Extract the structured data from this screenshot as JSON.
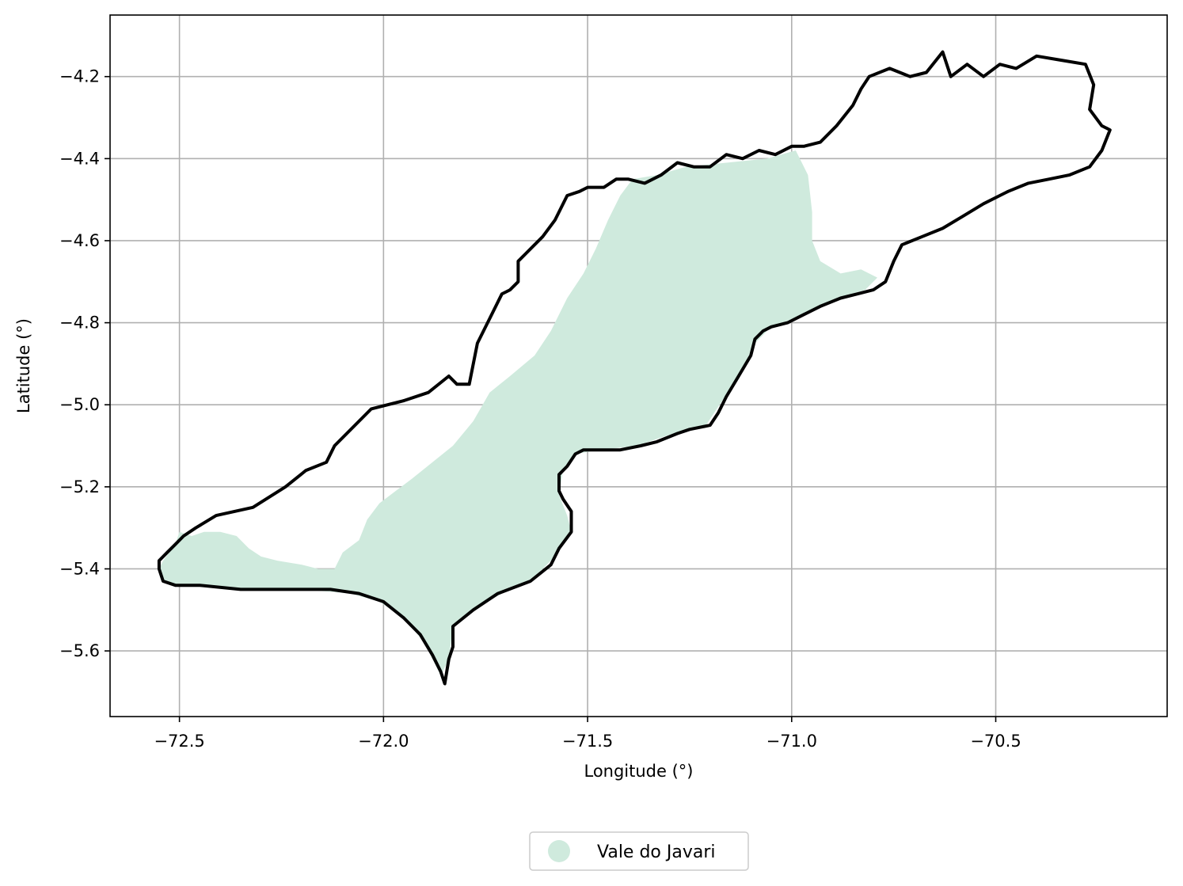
{
  "chart_data": {
    "type": "map",
    "xlabel": "Longitude (°)",
    "ylabel": "Latitude (°)",
    "xlim": [
      -72.67,
      -70.08
    ],
    "ylim": [
      -5.76,
      -4.05
    ],
    "xticks": [
      {
        "value": -72.5,
        "label": "−72.5"
      },
      {
        "value": -72.0,
        "label": "−72.0"
      },
      {
        "value": -71.5,
        "label": "−71.5"
      },
      {
        "value": -71.0,
        "label": "−71.0"
      },
      {
        "value": -70.5,
        "label": "−70.5"
      }
    ],
    "yticks": [
      {
        "value": -4.2,
        "label": "−4.2"
      },
      {
        "value": -4.4,
        "label": "−4.4"
      },
      {
        "value": -4.6,
        "label": "−4.6"
      },
      {
        "value": -4.8,
        "label": "−4.8"
      },
      {
        "value": -5.0,
        "label": "−5.0"
      },
      {
        "value": -5.2,
        "label": "−5.2"
      },
      {
        "value": -5.4,
        "label": "−5.4"
      },
      {
        "value": -5.6,
        "label": "−5.6"
      }
    ],
    "grid": true,
    "legend": {
      "placement": "below-center",
      "entries": [
        {
          "label": "Vale do Javari",
          "color": "#cfeadd"
        }
      ]
    },
    "fill_color": "#cfeadd",
    "outline_color": "#000000",
    "layers": {
      "outline": [
        [
          -72.55,
          -5.38
        ],
        [
          -72.53,
          -5.36
        ],
        [
          -72.51,
          -5.34
        ],
        [
          -72.49,
          -5.32
        ],
        [
          -72.46,
          -5.3
        ],
        [
          -72.41,
          -5.27
        ],
        [
          -72.32,
          -5.25
        ],
        [
          -72.24,
          -5.2
        ],
        [
          -72.19,
          -5.16
        ],
        [
          -72.14,
          -5.14
        ],
        [
          -72.12,
          -5.1
        ],
        [
          -72.03,
          -5.01
        ],
        [
          -71.95,
          -4.99
        ],
        [
          -71.89,
          -4.97
        ],
        [
          -71.84,
          -4.93
        ],
        [
          -71.82,
          -4.95
        ],
        [
          -71.79,
          -4.95
        ],
        [
          -71.77,
          -4.85
        ],
        [
          -71.74,
          -4.79
        ],
        [
          -71.71,
          -4.73
        ],
        [
          -71.69,
          -4.72
        ],
        [
          -71.67,
          -4.7
        ],
        [
          -71.67,
          -4.65
        ],
        [
          -71.65,
          -4.63
        ],
        [
          -71.61,
          -4.59
        ],
        [
          -71.58,
          -4.55
        ],
        [
          -71.55,
          -4.49
        ],
        [
          -71.52,
          -4.48
        ],
        [
          -71.5,
          -4.47
        ],
        [
          -71.46,
          -4.47
        ],
        [
          -71.43,
          -4.45
        ],
        [
          -71.4,
          -4.45
        ],
        [
          -71.36,
          -4.46
        ],
        [
          -71.32,
          -4.44
        ],
        [
          -71.28,
          -4.41
        ],
        [
          -71.24,
          -4.42
        ],
        [
          -71.2,
          -4.42
        ],
        [
          -71.16,
          -4.39
        ],
        [
          -71.12,
          -4.4
        ],
        [
          -71.08,
          -4.38
        ],
        [
          -71.04,
          -4.39
        ],
        [
          -71.0,
          -4.37
        ],
        [
          -70.97,
          -4.37
        ],
        [
          -70.93,
          -4.36
        ],
        [
          -70.89,
          -4.32
        ],
        [
          -70.85,
          -4.27
        ],
        [
          -70.83,
          -4.23
        ],
        [
          -70.81,
          -4.2
        ],
        [
          -70.76,
          -4.18
        ],
        [
          -70.71,
          -4.2
        ],
        [
          -70.67,
          -4.19
        ],
        [
          -70.63,
          -4.14
        ],
        [
          -70.61,
          -4.2
        ],
        [
          -70.57,
          -4.17
        ],
        [
          -70.53,
          -4.2
        ],
        [
          -70.49,
          -4.17
        ],
        [
          -70.45,
          -4.18
        ],
        [
          -70.4,
          -4.15
        ],
        [
          -70.34,
          -4.16
        ],
        [
          -70.28,
          -4.17
        ],
        [
          -70.26,
          -4.22
        ],
        [
          -70.27,
          -4.28
        ],
        [
          -70.24,
          -4.32
        ],
        [
          -70.22,
          -4.33
        ],
        [
          -70.24,
          -4.38
        ],
        [
          -70.27,
          -4.42
        ],
        [
          -70.32,
          -4.44
        ],
        [
          -70.37,
          -4.45
        ],
        [
          -70.42,
          -4.46
        ],
        [
          -70.47,
          -4.48
        ],
        [
          -70.53,
          -4.51
        ],
        [
          -70.58,
          -4.54
        ],
        [
          -70.63,
          -4.57
        ],
        [
          -70.68,
          -4.59
        ],
        [
          -70.73,
          -4.61
        ],
        [
          -70.75,
          -4.65
        ],
        [
          -70.77,
          -4.7
        ],
        [
          -70.8,
          -4.72
        ],
        [
          -70.84,
          -4.73
        ],
        [
          -70.88,
          -4.74
        ],
        [
          -70.93,
          -4.76
        ],
        [
          -70.97,
          -4.78
        ],
        [
          -71.01,
          -4.8
        ],
        [
          -71.05,
          -4.81
        ],
        [
          -71.07,
          -4.82
        ],
        [
          -71.09,
          -4.84
        ],
        [
          -71.1,
          -4.88
        ],
        [
          -71.13,
          -4.93
        ],
        [
          -71.16,
          -4.98
        ],
        [
          -71.18,
          -5.02
        ],
        [
          -71.2,
          -5.05
        ],
        [
          -71.25,
          -5.06
        ],
        [
          -71.28,
          -5.07
        ],
        [
          -71.33,
          -5.09
        ],
        [
          -71.37,
          -5.1
        ],
        [
          -71.42,
          -5.11
        ],
        [
          -71.47,
          -5.11
        ],
        [
          -71.51,
          -5.11
        ],
        [
          -71.53,
          -5.12
        ],
        [
          -71.55,
          -5.15
        ],
        [
          -71.57,
          -5.17
        ],
        [
          -71.57,
          -5.21
        ],
        [
          -71.56,
          -5.23
        ],
        [
          -71.54,
          -5.26
        ],
        [
          -71.54,
          -5.31
        ],
        [
          -71.57,
          -5.35
        ],
        [
          -71.59,
          -5.39
        ],
        [
          -71.64,
          -5.43
        ],
        [
          -71.72,
          -5.46
        ],
        [
          -71.78,
          -5.5
        ],
        [
          -71.83,
          -5.54
        ],
        [
          -71.83,
          -5.59
        ],
        [
          -71.84,
          -5.62
        ],
        [
          -71.85,
          -5.68
        ],
        [
          -71.86,
          -5.65
        ],
        [
          -71.88,
          -5.61
        ],
        [
          -71.91,
          -5.56
        ],
        [
          -71.95,
          -5.52
        ],
        [
          -72.0,
          -5.48
        ],
        [
          -72.06,
          -5.46
        ],
        [
          -72.13,
          -5.45
        ],
        [
          -72.25,
          -5.45
        ],
        [
          -72.35,
          -5.45
        ],
        [
          -72.45,
          -5.44
        ],
        [
          -72.51,
          -5.44
        ],
        [
          -72.54,
          -5.43
        ],
        [
          -72.55,
          -5.4
        ],
        [
          -72.55,
          -5.38
        ]
      ],
      "fill": [
        [
          -72.54,
          -5.38
        ],
        [
          -72.51,
          -5.34
        ],
        [
          -72.5,
          -5.31
        ],
        [
          -72.47,
          -5.32
        ],
        [
          -72.44,
          -5.31
        ],
        [
          -72.4,
          -5.31
        ],
        [
          -72.36,
          -5.32
        ],
        [
          -72.33,
          -5.35
        ],
        [
          -72.3,
          -5.37
        ],
        [
          -72.26,
          -5.38
        ],
        [
          -72.2,
          -5.39
        ],
        [
          -72.16,
          -5.4
        ],
        [
          -72.12,
          -5.4
        ],
        [
          -72.1,
          -5.36
        ],
        [
          -72.06,
          -5.33
        ],
        [
          -72.04,
          -5.28
        ],
        [
          -72.01,
          -5.24
        ],
        [
          -71.97,
          -5.21
        ],
        [
          -71.93,
          -5.18
        ],
        [
          -71.88,
          -5.14
        ],
        [
          -71.83,
          -5.1
        ],
        [
          -71.78,
          -5.04
        ],
        [
          -71.74,
          -4.97
        ],
        [
          -71.69,
          -4.93
        ],
        [
          -71.63,
          -4.88
        ],
        [
          -71.59,
          -4.82
        ],
        [
          -71.55,
          -4.74
        ],
        [
          -71.51,
          -4.68
        ],
        [
          -71.48,
          -4.62
        ],
        [
          -71.45,
          -4.55
        ],
        [
          -71.42,
          -4.49
        ],
        [
          -71.39,
          -4.45
        ],
        [
          -71.33,
          -4.44
        ],
        [
          -71.26,
          -4.42
        ],
        [
          -71.16,
          -4.41
        ],
        [
          -71.06,
          -4.4
        ],
        [
          -70.99,
          -4.38
        ],
        [
          -70.96,
          -4.44
        ],
        [
          -70.95,
          -4.53
        ],
        [
          -70.95,
          -4.6
        ],
        [
          -70.93,
          -4.65
        ],
        [
          -70.88,
          -4.68
        ],
        [
          -70.83,
          -4.67
        ],
        [
          -70.79,
          -4.69
        ],
        [
          -70.82,
          -4.72
        ],
        [
          -70.89,
          -4.74
        ],
        [
          -70.97,
          -4.78
        ],
        [
          -71.05,
          -4.81
        ],
        [
          -71.09,
          -4.85
        ],
        [
          -71.12,
          -4.91
        ],
        [
          -71.17,
          -4.99
        ],
        [
          -71.21,
          -5.05
        ],
        [
          -71.29,
          -5.07
        ],
        [
          -71.38,
          -5.1
        ],
        [
          -71.47,
          -5.11
        ],
        [
          -71.53,
          -5.12
        ],
        [
          -71.56,
          -5.16
        ],
        [
          -71.57,
          -5.22
        ],
        [
          -71.55,
          -5.27
        ],
        [
          -71.54,
          -5.31
        ],
        [
          -71.58,
          -5.37
        ],
        [
          -71.63,
          -5.42
        ],
        [
          -71.71,
          -5.46
        ],
        [
          -71.78,
          -5.5
        ],
        [
          -71.83,
          -5.54
        ],
        [
          -71.84,
          -5.62
        ],
        [
          -71.86,
          -5.66
        ],
        [
          -71.9,
          -5.58
        ],
        [
          -71.95,
          -5.52
        ],
        [
          -72.01,
          -5.48
        ],
        [
          -72.08,
          -5.46
        ],
        [
          -72.2,
          -5.45
        ],
        [
          -72.35,
          -5.45
        ],
        [
          -72.5,
          -5.44
        ],
        [
          -72.54,
          -5.43
        ],
        [
          -72.55,
          -5.4
        ],
        [
          -72.54,
          -5.38
        ]
      ]
    }
  }
}
